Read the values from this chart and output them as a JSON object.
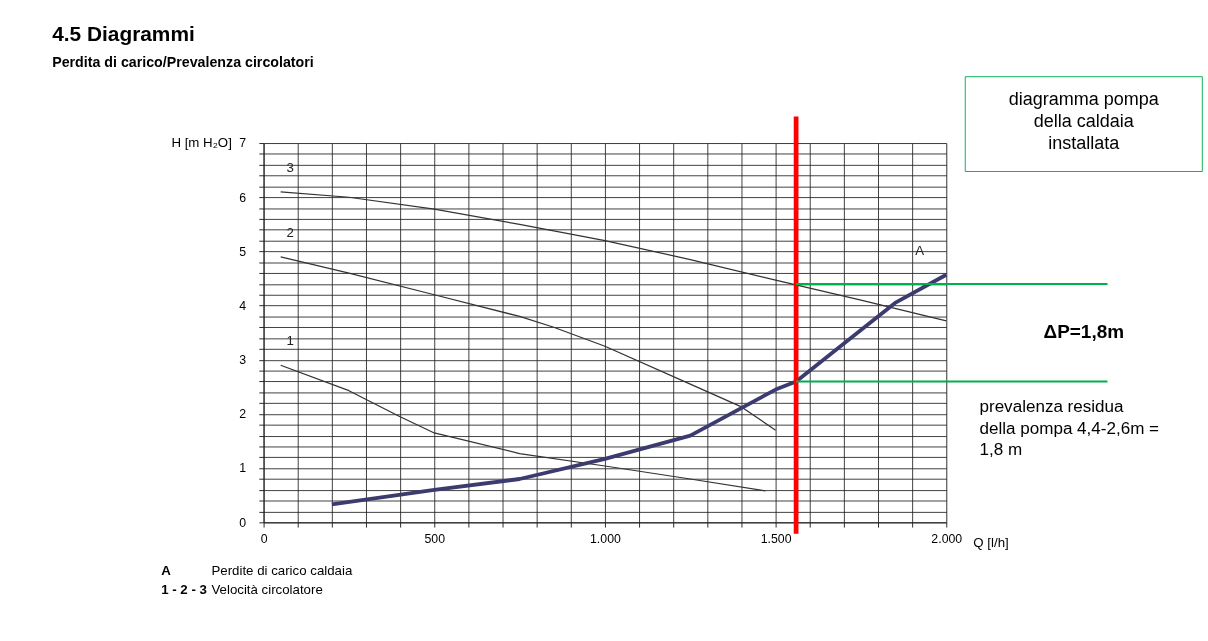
{
  "chart_data": {
    "type": "line",
    "title": "4.5  Diagrammi",
    "subtitle": "Perdita di carico/Prevalenza circolatori",
    "xlabel": "Q [l/h]",
    "ylabel": "H [m H₂O]",
    "xlim": [
      0,
      2000
    ],
    "ylim": [
      0,
      7
    ],
    "xticks": [
      0,
      {
        "value": 100,
        "label": null
      },
      {
        "value": 200,
        "label": null
      },
      {
        "value": 300,
        "label": null
      },
      {
        "value": 400,
        "label": null
      },
      500,
      {
        "value": 600,
        "label": null
      },
      {
        "value": 700,
        "label": null
      },
      {
        "value": 800,
        "label": null
      },
      {
        "value": 900,
        "label": null
      },
      {
        "value": 1000,
        "label": "1.000"
      },
      {
        "value": 1100,
        "label": null
      },
      {
        "value": 1200,
        "label": null
      },
      {
        "value": 1300,
        "label": null
      },
      {
        "value": 1400,
        "label": null
      },
      {
        "value": 1500,
        "label": "1.500"
      },
      {
        "value": 1600,
        "label": null
      },
      {
        "value": 1700,
        "label": null
      },
      {
        "value": 1800,
        "label": null
      },
      {
        "value": 1900,
        "label": null
      },
      {
        "value": 2000,
        "label": "2.000"
      }
    ],
    "yticks": [
      0,
      {
        "value": 0.2,
        "label": null
      },
      {
        "value": 0.4,
        "label": null
      },
      {
        "value": 0.6,
        "label": null
      },
      {
        "value": 0.8,
        "label": null
      },
      1,
      {
        "value": 1.2,
        "label": null
      },
      {
        "value": 1.4,
        "label": null
      },
      {
        "value": 1.6,
        "label": null
      },
      {
        "value": 1.8,
        "label": null
      },
      2,
      {
        "value": 2.2,
        "label": null
      },
      {
        "value": 2.4,
        "label": null
      },
      {
        "value": 2.6,
        "label": null
      },
      {
        "value": 2.8,
        "label": null
      },
      3,
      {
        "value": 3.2,
        "label": null
      },
      {
        "value": 3.4,
        "label": null
      },
      {
        "value": 3.6,
        "label": null
      },
      {
        "value": 3.8,
        "label": null
      },
      4,
      {
        "value": 4.2,
        "label": null
      },
      {
        "value": 4.4,
        "label": null
      },
      {
        "value": 4.6,
        "label": null
      },
      {
        "value": 4.8,
        "label": null
      },
      5,
      {
        "value": 5.2,
        "label": null
      },
      {
        "value": 5.4,
        "label": null
      },
      {
        "value": 5.6,
        "label": null
      },
      {
        "value": 5.8,
        "label": null
      },
      6,
      {
        "value": 6.2,
        "label": null
      },
      {
        "value": 6.4,
        "label": null
      },
      {
        "value": 6.6,
        "label": null
      },
      {
        "value": 6.8,
        "label": null
      },
      7
    ],
    "grid": true,
    "legend": false,
    "marker": "none",
    "line_style": "solid",
    "series": [
      {
        "name": "3",
        "color": "#333333",
        "x": [
          50,
          250,
          500,
          750,
          1000,
          1250,
          1500,
          1750,
          2000
        ],
        "values": [
          6.1,
          6.0,
          5.78,
          5.5,
          5.2,
          4.85,
          4.47,
          4.1,
          3.72
        ]
      },
      {
        "name": "2",
        "color": "#333333",
        "x": [
          50,
          250,
          500,
          750,
          850,
          1000,
          1250,
          1400,
          1500
        ],
        "values": [
          4.9,
          4.6,
          4.2,
          3.8,
          3.6,
          3.25,
          2.55,
          2.13,
          1.7
        ]
      },
      {
        "name": "1",
        "color": "#333333",
        "x": [
          50,
          250,
          400,
          500,
          750,
          1000,
          1250,
          1470
        ],
        "values": [
          2.9,
          2.43,
          1.95,
          1.65,
          1.27,
          1.04,
          0.8,
          0.58
        ]
      },
      {
        "name": "A",
        "color": "#3b3b70",
        "x": [
          200,
          500,
          750,
          1000,
          1250,
          1500,
          1560,
          1750,
          1850,
          2000
        ],
        "values": [
          0.33,
          0.6,
          0.8,
          1.17,
          1.6,
          2.45,
          2.6,
          3.55,
          4.05,
          4.57
        ]
      }
    ],
    "ref_lines": [
      {
        "axis": "x",
        "value": 1560,
        "color": "#ff0000"
      },
      {
        "axis": "y",
        "value": 4.4,
        "color": "#00b050"
      },
      {
        "axis": "y",
        "value": 2.6,
        "color": "#00b050"
      }
    ],
    "annotations": [
      "diagramma pompa della caldaia installata",
      "ΔP=1,8m",
      "prevalenza residua della pompa 4,4-2,6m = 1,8 m",
      "A",
      "Perdite di carico caldaia",
      "1 - 2 - 3",
      "Velocità circolatore"
    ]
  }
}
